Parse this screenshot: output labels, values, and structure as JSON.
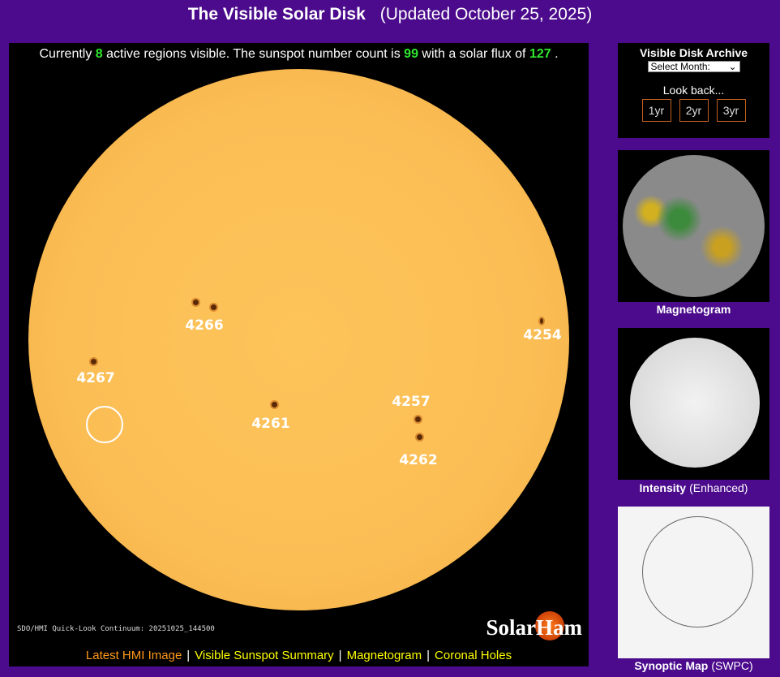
{
  "header": {
    "title": "The Visible Solar Disk",
    "updated": "(Updated October 25, 2025)"
  },
  "status": {
    "prefix": "Currently",
    "regions": "8",
    "mid1": "active regions visible. The sunspot number count is",
    "sunspot_number": "99",
    "mid2": "with a solar flux of",
    "flux": "127",
    "suffix": "."
  },
  "image": {
    "caption": "SDO/HMI Quick-Look Continuum: 20251025_144500",
    "logo": "SolarHam",
    "regions": [
      "4266",
      "4267",
      "4254",
      "4261",
      "4257",
      "4262"
    ]
  },
  "links": [
    "Latest HMI Image",
    "Visible Sunspot Summary",
    "Magnetogram",
    "Coronal Holes"
  ],
  "archive": {
    "title": "Visible Disk Archive",
    "select": "Select Month:",
    "look_back": "Look back...",
    "buttons": [
      "1yr",
      "2yr",
      "3yr"
    ]
  },
  "thumbs": {
    "magnetogram": "Magnetogram",
    "intensity": "Intensity",
    "intensity_note": "(Enhanced)",
    "synoptic": "Synoptic Map",
    "synoptic_note": "(SWPC)"
  },
  "colors": {
    "background": "#4b0b8c",
    "highlight": "#2ee82e",
    "link": "#ffff00",
    "link_active": "#ff9a1a"
  }
}
